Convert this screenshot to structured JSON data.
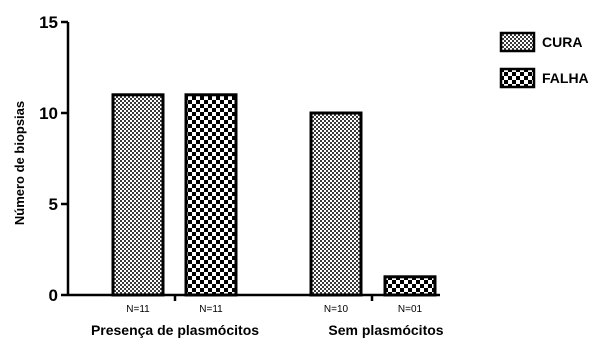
{
  "chart_data": {
    "type": "bar",
    "title": "",
    "xlabel": "",
    "ylabel": "Número de biopsias",
    "ylim": [
      0,
      15
    ],
    "yticks": [
      "0",
      "5",
      "10",
      "15"
    ],
    "grid": false,
    "legend_position": "top-right",
    "categories": [
      "Presença de plasmócitos",
      "Sem plasmócitos"
    ],
    "series": [
      {
        "name": "CURA",
        "pattern": "fine-checker",
        "color": "#808080",
        "values": [
          11,
          10
        ],
        "n_labels": [
          "N=11",
          "N=10"
        ]
      },
      {
        "name": "FALHA",
        "pattern": "coarse-checker",
        "color": "#000000",
        "values": [
          11,
          1
        ],
        "n_labels": [
          "N=11",
          "N=01"
        ]
      }
    ]
  }
}
